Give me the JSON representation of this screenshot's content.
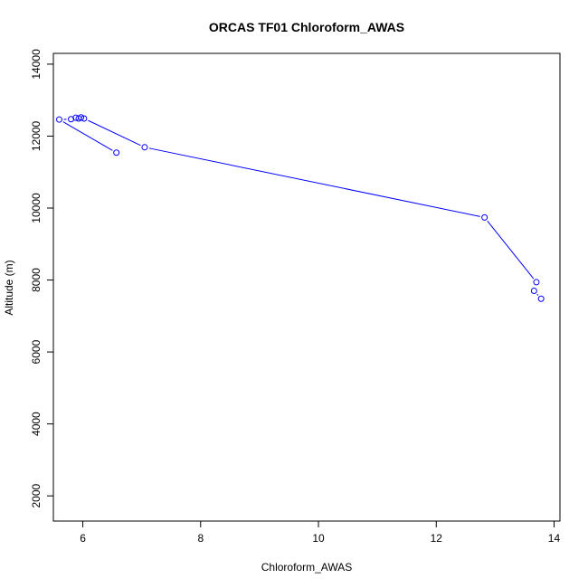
{
  "chart_data": {
    "type": "line",
    "title": "ORCAS TF01 Chloroform_AWAS",
    "xlabel": "Chloroform_AWAS",
    "ylabel": "Altitude (m)",
    "xlim": [
      5.5,
      14.1
    ],
    "ylim": [
      1300,
      14300
    ],
    "x_ticks": [
      6,
      8,
      10,
      12,
      14
    ],
    "y_ticks": [
      2000,
      4000,
      6000,
      8000,
      10000,
      12000,
      14000
    ],
    "grid": false,
    "legend": "none",
    "colors": {
      "series": "#0000ff",
      "axis": "#000000"
    },
    "series": [
      {
        "x": [
          6.57,
          5.6,
          5.8,
          5.88,
          5.93,
          5.97,
          6.02,
          7.05,
          12.82,
          13.7,
          13.66,
          13.78
        ],
        "y": [
          11540,
          12460,
          12470,
          12510,
          12490,
          12520,
          12490,
          11690,
          9740,
          7940,
          7700,
          7480
        ]
      }
    ]
  }
}
